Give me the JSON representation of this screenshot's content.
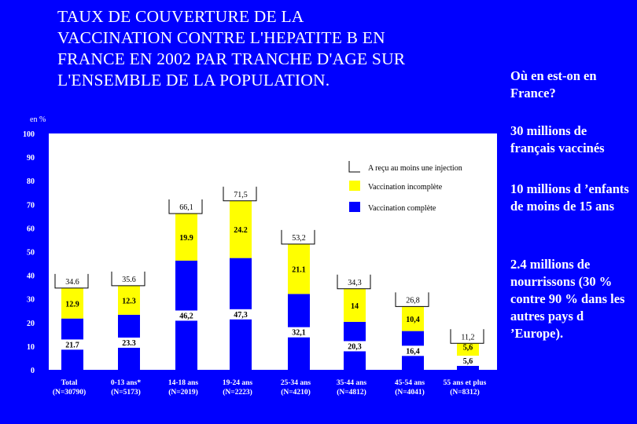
{
  "title": "TAUX DE COUVERTURE DE LA\nVACCINATION CONTRE L'HEPATITE B EN\nFRANCE EN 2002 PAR TRANCHE D'AGE SUR\nL'ENSEMBLE DE LA POPULATION.",
  "side": {
    "question": "Où en est-on en France?",
    "point1": "30 millions de français vaccinés",
    "point2": "10 millions d ’enfants de moins de 15 ans",
    "point3": "2.4 millions de nourrissons (30 % contre 90 % dans les autres pays d ’Europe)."
  },
  "colors": {
    "background": "#0000ff",
    "complete": "#0000ff",
    "incomplete": "#ffff00",
    "plot_bg": "#ffffff"
  },
  "chart_data": {
    "type": "bar",
    "stacked": true,
    "ylabel": "en %",
    "ylim": [
      0,
      100
    ],
    "yticks": [
      "0",
      "10",
      "20",
      "30",
      "40",
      "50",
      "60",
      "70",
      "80",
      "90",
      "100"
    ],
    "legend": {
      "placement": "top-right",
      "entries": [
        "A reçu au moins une injection",
        "Vaccination incomplète",
        "Vaccination complète"
      ]
    },
    "categories": [
      {
        "name": "Total",
        "n": "(N=30790)"
      },
      {
        "name": "0-13 ans*",
        "n": "(N=5173)"
      },
      {
        "name": "14-18 ans",
        "n": "(N=2019)"
      },
      {
        "name": "19-24 ans",
        "n": "(N=2223)"
      },
      {
        "name": "25-34 ans",
        "n": "(N=4210)"
      },
      {
        "name": "35-44 ans",
        "n": "(N=4812)"
      },
      {
        "name": "45-54 ans",
        "n": "(N=4041)"
      },
      {
        "name": "55 ans et plus",
        "n": "(N=8312)"
      }
    ],
    "series": [
      {
        "name": "Vaccination complète",
        "values": [
          21.7,
          23.3,
          46.2,
          47.3,
          32.1,
          20.3,
          16.4,
          5.6
        ],
        "labels": [
          "21.7",
          "23.3",
          "46,2",
          "47,3",
          "32,1",
          "20,3",
          "16,4",
          "5,6"
        ]
      },
      {
        "name": "Vaccination incomplète",
        "values": [
          12.9,
          12.3,
          19.9,
          24.2,
          21.1,
          14,
          10.4,
          5.6
        ],
        "labels": [
          "12.9",
          "12.3",
          "19.9",
          "24.2",
          "21.1",
          "14",
          "10,4",
          "5,6"
        ]
      }
    ],
    "totals": {
      "name": "A reçu au moins une injection",
      "values": [
        34.6,
        35.6,
        66.1,
        71.5,
        53.2,
        34.3,
        26.8,
        11.2
      ],
      "labels": [
        "34.6",
        "35.6",
        "66,1",
        "71,5",
        "53,2",
        "34,3",
        "26,8",
        "11,2"
      ]
    }
  }
}
